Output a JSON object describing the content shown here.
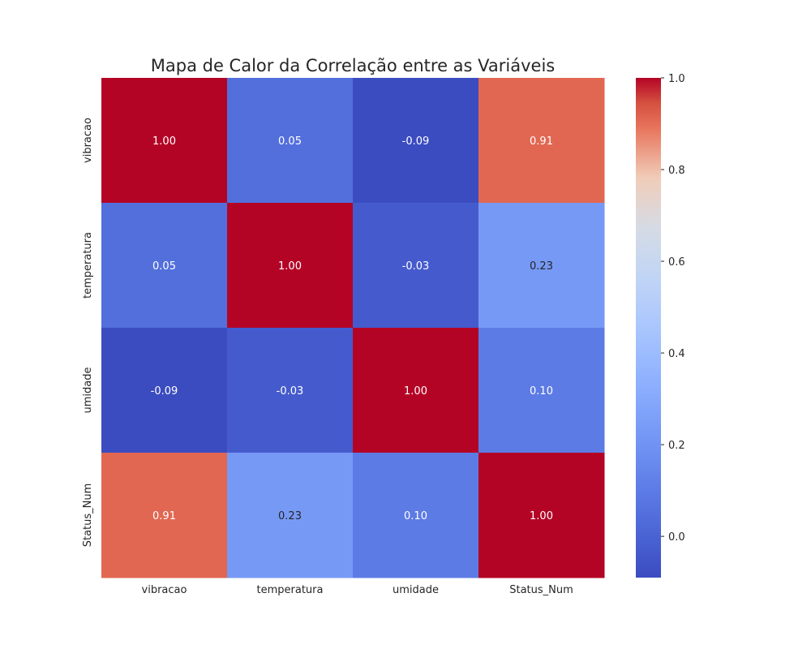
{
  "chart_data": {
    "type": "heatmap",
    "title": "Mapa de Calor da Correlação entre as Variáveis",
    "xlabel": "",
    "ylabel": "",
    "x_categories": [
      "vibracao",
      "temperatura",
      "umidade",
      "Status_Num"
    ],
    "y_categories": [
      "vibracao",
      "temperatura",
      "umidade",
      "Status_Num"
    ],
    "values": [
      [
        1.0,
        0.05,
        -0.09,
        0.91
      ],
      [
        0.05,
        1.0,
        -0.03,
        0.23
      ],
      [
        -0.09,
        -0.03,
        1.0,
        0.1
      ],
      [
        0.91,
        0.23,
        0.1,
        1.0
      ]
    ],
    "value_format": "0.00",
    "colormap": "coolwarm",
    "color_range": [
      -0.09,
      1.0
    ],
    "colorbar": {
      "ticks": [
        0.0,
        0.2,
        0.4,
        0.6,
        0.8,
        1.0
      ],
      "tick_labels": [
        "0.0",
        "0.2",
        "0.4",
        "0.6",
        "0.8",
        "1.0"
      ],
      "placement": "right"
    },
    "grid": false
  }
}
